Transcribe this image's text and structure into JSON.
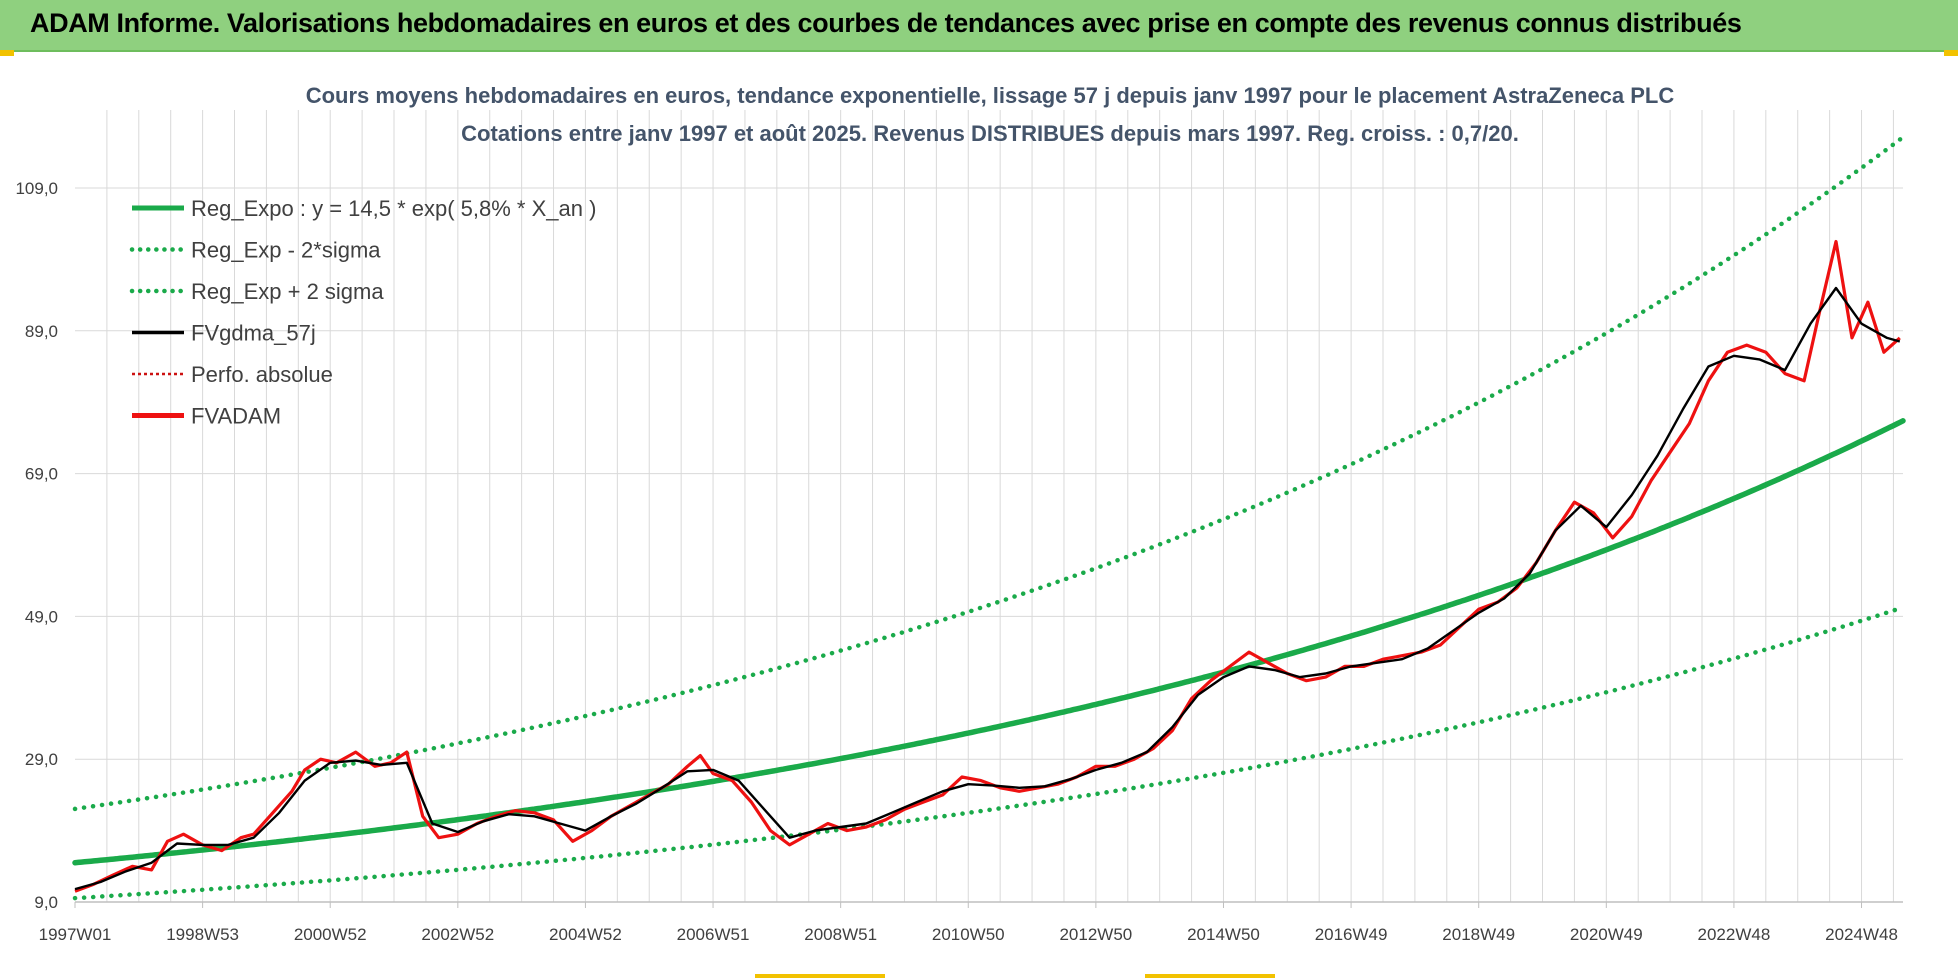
{
  "banner": "ADAM Informe. Valorisations hebdomadaires en euros et des courbes de tendances avec prise en compte des revenus connus distribués",
  "colors": {
    "banner_bg": "#8fd07f",
    "reg": "#1aaa4a",
    "fv": "#000000",
    "adam": "#ee1111",
    "perf": "#cc1111",
    "grid": "#d9d9d9"
  },
  "chart_data": {
    "type": "line",
    "title": "Cours moyens hebdomadaires en euros, tendance exponentielle, lissage 57 j depuis janv 1997 pour le placement AstraZeneca PLC",
    "subtitle": "Cotations entre janv 1997 et août 2025. Revenus DISTRIBUES depuis mars 1997. Reg. croiss. : 0,7/20.",
    "x_tick_labels": [
      "1997W01",
      "1998W53",
      "2000W52",
      "2002W52",
      "2004W52",
      "2006W51",
      "2008W51",
      "2010W50",
      "2012W50",
      "2014W50",
      "2016W49",
      "2018W49",
      "2020W49",
      "2022W48",
      "2024W48"
    ],
    "x_ticks": [
      1997.0,
      1999.0,
      2001.0,
      2003.0,
      2005.0,
      2007.0,
      2009.0,
      2011.0,
      2013.0,
      2015.0,
      2017.0,
      2019.0,
      2021.0,
      2023.0,
      2025.0
    ],
    "xlim": [
      1997.0,
      2025.65
    ],
    "y_tick_labels": [
      "9,0",
      "29,0",
      "49,0",
      "69,0",
      "89,0",
      "109,0"
    ],
    "y_ticks": [
      9,
      29,
      49,
      69,
      89,
      109
    ],
    "ylim": [
      9,
      109
    ],
    "grid": true,
    "legend_position": "top-left",
    "regression": {
      "a": 14.5,
      "rate": 0.058,
      "sigma_factor": 1.52
    },
    "legend": [
      {
        "key": "reg",
        "label": "Reg_Expo : y = 14,5 * exp( 5,8% *  X_an )",
        "style": "solid-thick",
        "color": "#1aaa4a"
      },
      {
        "key": "low",
        "label": "Reg_Exp - 2*sigma",
        "style": "dotted",
        "color": "#1aaa4a"
      },
      {
        "key": "high",
        "label": "Reg_Exp + 2 sigma",
        "style": "dotted",
        "color": "#1aaa4a"
      },
      {
        "key": "fv",
        "label": "FVgdma_57j",
        "style": "solid",
        "color": "#000000"
      },
      {
        "key": "perf",
        "label": "Perfo. absolue",
        "style": "dotted-thin",
        "color": "#cc1111"
      },
      {
        "key": "adam",
        "label": "FVADAM",
        "style": "solid-thick",
        "color": "#ee1111"
      }
    ],
    "series": [
      {
        "name": "FVADAM",
        "x": [
          1997.0,
          1997.3,
          1997.6,
          1997.9,
          1998.2,
          1998.45,
          1998.7,
          1999.0,
          1999.3,
          1999.6,
          1999.8,
          2000.1,
          2000.4,
          2000.6,
          2000.85,
          2001.1,
          2001.4,
          2001.7,
          2001.95,
          2002.2,
          2002.45,
          2002.7,
          2003.0,
          2003.3,
          2003.6,
          2003.9,
          2004.2,
          2004.5,
          2004.8,
          2005.1,
          2005.4,
          2005.7,
          2006.0,
          2006.3,
          2006.6,
          2006.8,
          2007.0,
          2007.3,
          2007.6,
          2007.9,
          2008.2,
          2008.5,
          2008.8,
          2009.1,
          2009.4,
          2009.7,
          2010.0,
          2010.3,
          2010.6,
          2010.9,
          2011.2,
          2011.5,
          2011.8,
          2012.1,
          2012.4,
          2012.7,
          2013.0,
          2013.3,
          2013.6,
          2013.9,
          2014.2,
          2014.5,
          2014.8,
          2015.1,
          2015.4,
          2015.7,
          2016.0,
          2016.3,
          2016.6,
          2016.9,
          2017.2,
          2017.5,
          2017.8,
          2018.1,
          2018.4,
          2018.7,
          2019.0,
          2019.3,
          2019.6,
          2019.9,
          2020.2,
          2020.5,
          2020.8,
          2021.1,
          2021.4,
          2021.7,
          2022.0,
          2022.3,
          2022.6,
          2022.9,
          2023.2,
          2023.5,
          2023.8,
          2024.1,
          2024.35,
          2024.6,
          2024.85,
          2025.1,
          2025.35,
          2025.6
        ],
        "y": [
          10.5,
          11.5,
          12.8,
          14.0,
          13.5,
          17.5,
          18.5,
          17.0,
          16.2,
          18.0,
          18.5,
          21.5,
          24.5,
          27.5,
          29.0,
          28.5,
          30.0,
          28.0,
          28.5,
          30.0,
          21.0,
          18.0,
          18.5,
          20.0,
          21.0,
          21.8,
          21.5,
          20.5,
          17.5,
          19.0,
          21.0,
          22.5,
          24.0,
          25.5,
          28.0,
          29.5,
          27.0,
          26.0,
          23.0,
          19.0,
          17.0,
          18.5,
          20.0,
          19.0,
          19.5,
          20.5,
          22.0,
          23.0,
          24.0,
          26.5,
          26.0,
          25.0,
          24.5,
          25.0,
          25.5,
          26.5,
          28.0,
          28.0,
          29.0,
          30.5,
          33.0,
          37.5,
          40.0,
          42.0,
          44.0,
          42.5,
          41.0,
          40.0,
          40.5,
          42.0,
          42.0,
          43.0,
          43.5,
          44.0,
          45.0,
          47.5,
          50.0,
          51.0,
          53.0,
          56.5,
          61.0,
          65.0,
          63.5,
          60.0,
          63.0,
          68.0,
          72.0,
          76.0,
          82.0,
          86.0,
          87.0,
          86.0,
          83.0,
          82.0,
          92.0,
          101.5,
          88.0,
          93.0,
          86.0,
          88.0
        ]
      },
      {
        "name": "FVgdma_57j",
        "x": [
          1997.0,
          1997.4,
          1997.8,
          1998.2,
          1998.6,
          1999.0,
          1999.4,
          1999.8,
          2000.2,
          2000.6,
          2001.0,
          2001.4,
          2001.8,
          2002.2,
          2002.6,
          2003.0,
          2003.4,
          2003.8,
          2004.2,
          2004.6,
          2005.0,
          2005.4,
          2005.8,
          2006.2,
          2006.6,
          2007.0,
          2007.4,
          2007.8,
          2008.2,
          2008.6,
          2009.0,
          2009.4,
          2009.8,
          2010.2,
          2010.6,
          2011.0,
          2011.4,
          2011.8,
          2012.2,
          2012.6,
          2013.0,
          2013.4,
          2013.8,
          2014.2,
          2014.6,
          2015.0,
          2015.4,
          2015.8,
          2016.2,
          2016.6,
          2017.0,
          2017.4,
          2017.8,
          2018.2,
          2018.6,
          2019.0,
          2019.4,
          2019.8,
          2020.2,
          2020.6,
          2021.0,
          2021.4,
          2021.8,
          2022.2,
          2022.6,
          2023.0,
          2023.4,
          2023.8,
          2024.2,
          2024.6,
          2025.0,
          2025.4,
          2025.6
        ],
        "y": [
          10.8,
          11.8,
          13.3,
          14.5,
          17.2,
          17.0,
          17.0,
          18.0,
          21.5,
          26.0,
          28.5,
          28.8,
          28.2,
          28.5,
          20.0,
          18.8,
          20.3,
          21.3,
          21.0,
          20.0,
          19.0,
          21.0,
          22.8,
          25.0,
          27.3,
          27.5,
          26.0,
          22.0,
          18.0,
          19.0,
          19.5,
          20.0,
          21.5,
          23.0,
          24.5,
          25.5,
          25.3,
          25.0,
          25.2,
          26.2,
          27.5,
          28.5,
          30.0,
          33.5,
          38.0,
          40.5,
          42.0,
          41.5,
          40.5,
          41.0,
          42.0,
          42.5,
          43.0,
          44.5,
          47.0,
          49.5,
          51.5,
          55.0,
          61.0,
          64.5,
          61.5,
          66.0,
          71.5,
          78.0,
          84.0,
          85.5,
          85.0,
          83.5,
          90.0,
          95.0,
          90.0,
          88.0,
          87.5
        ]
      }
    ]
  }
}
